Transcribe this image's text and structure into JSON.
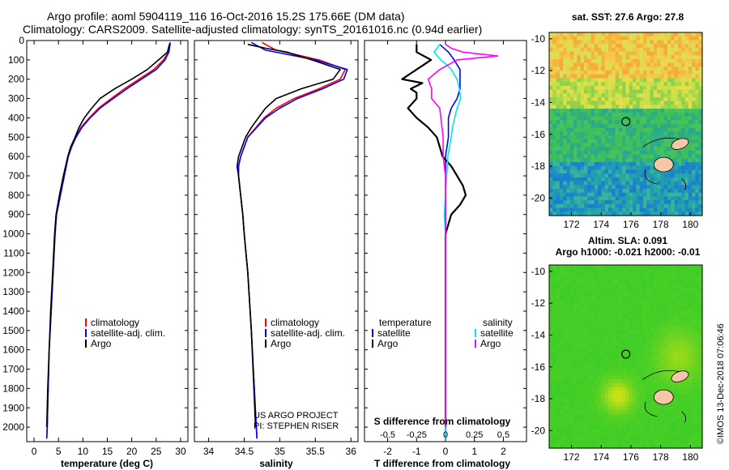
{
  "header": {
    "title_line1": "Argo profile: aoml 5904119_116 16-Oct-2016 15.2S 175.66E (DM data)",
    "title_line2": "Climatology: CARS2009. Satellite-adjusted climatology: synTS_20161016.nc (0.94d earlier)"
  },
  "colors": {
    "climatology": "#ff0000",
    "satellite": "#0000ff",
    "argo": "#000000",
    "sat_salinity": "#00e5ee",
    "argo_salinity": "#ff00ff"
  },
  "depth_axis": {
    "range": [
      0,
      2075
    ],
    "ticks": [
      "0",
      "100",
      "200",
      "300",
      "400",
      "500",
      "600",
      "700",
      "800",
      "900",
      "1000",
      "1100",
      "1200",
      "1300",
      "1400",
      "1500",
      "1600",
      "1700",
      "1800",
      "1900",
      "2000"
    ]
  },
  "chart_data": [
    {
      "id": "temperature",
      "type": "line",
      "xlabel": "temperature (deg C)",
      "xlim": [
        -1.5,
        31.5
      ],
      "xticks": [
        "0",
        "5",
        "10",
        "15",
        "20",
        "25",
        "30"
      ],
      "xtick_values": [
        0,
        5,
        10,
        15,
        20,
        25,
        30
      ],
      "legend": [
        "climatology",
        "satellite-adj. clim.",
        "Argo"
      ],
      "series": [
        {
          "name": "climatology",
          "color": "#ff0000",
          "depth": [
            10,
            60,
            100,
            150,
            200,
            250,
            300,
            350,
            400,
            450,
            500,
            550,
            600,
            700,
            800,
            900,
            1000,
            1200,
            1400,
            1600,
            1800,
            2000,
            2060
          ],
          "values": [
            27.8,
            27.5,
            26.5,
            24.5,
            21.5,
            18.5,
            15.8,
            13.2,
            11.3,
            9.6,
            8.5,
            7.6,
            7.0,
            6.2,
            5.4,
            4.6,
            4.3,
            3.9,
            3.5,
            3.1,
            2.9,
            2.7,
            2.6
          ]
        },
        {
          "name": "satellite-adj. clim.",
          "color": "#0000ff",
          "depth": [
            10,
            60,
            100,
            150,
            200,
            250,
            300,
            350,
            400,
            450,
            500,
            550,
            600,
            700,
            800,
            900,
            1000,
            1200,
            1400,
            1600,
            1800,
            2000,
            2060
          ],
          "values": [
            27.9,
            27.6,
            26.8,
            25.0,
            22.0,
            19.0,
            16.2,
            13.5,
            11.5,
            9.8,
            8.6,
            7.7,
            7.0,
            6.2,
            5.4,
            4.6,
            4.3,
            3.9,
            3.5,
            3.1,
            2.9,
            2.7,
            2.6
          ]
        },
        {
          "name": "Argo",
          "color": "#000000",
          "depth": [
            20,
            60,
            100,
            150,
            200,
            250,
            300,
            350,
            400,
            450,
            500,
            550,
            600,
            700,
            800,
            900,
            1000,
            1200,
            1400,
            1600,
            1800,
            2000
          ],
          "values": [
            27.7,
            27.3,
            25.5,
            23.2,
            20.0,
            16.5,
            13.5,
            11.8,
            10.3,
            9.2,
            8.4,
            7.5,
            6.9,
            6.0,
            5.2,
            4.5,
            4.2,
            3.8,
            3.4,
            3.1,
            2.8,
            2.6
          ]
        }
      ]
    },
    {
      "id": "salinity",
      "type": "line",
      "xlabel": "salinity",
      "xlim": [
        33.8,
        36.1
      ],
      "xticks": [
        "34",
        "34.5",
        "35",
        "35.5",
        "36"
      ],
      "xtick_values": [
        34,
        34.5,
        35,
        35.5,
        36
      ],
      "legend": [
        "climatology",
        "satellite-adj. clim.",
        "Argo"
      ],
      "credit": [
        "US ARGO PROJECT",
        "PI: STEPHEN RISER"
      ],
      "series": [
        {
          "name": "climatology",
          "color": "#ff0000",
          "depth": [
            10,
            50,
            100,
            150,
            200,
            250,
            300,
            350,
            400,
            500,
            600,
            650,
            700,
            800,
            900,
            1000,
            1200,
            1500,
            2000,
            2060
          ],
          "values": [
            34.75,
            34.95,
            35.55,
            35.92,
            35.85,
            35.55,
            35.2,
            34.95,
            34.78,
            34.55,
            34.45,
            34.42,
            34.42,
            34.45,
            34.48,
            34.5,
            34.55,
            34.6,
            34.67,
            34.68
          ]
        },
        {
          "name": "satellite-adj. clim.",
          "color": "#0000ff",
          "depth": [
            10,
            50,
            100,
            150,
            200,
            250,
            300,
            350,
            400,
            500,
            600,
            650,
            700,
            800,
            900,
            1000,
            1200,
            1500,
            2000,
            2060
          ],
          "values": [
            34.6,
            34.8,
            35.5,
            35.95,
            35.9,
            35.6,
            35.25,
            35.0,
            34.8,
            34.55,
            34.45,
            34.42,
            34.42,
            34.45,
            34.48,
            34.5,
            34.55,
            34.6,
            34.67,
            34.68
          ]
        },
        {
          "name": "Argo",
          "color": "#000000",
          "depth": [
            20,
            40,
            60,
            100,
            150,
            200,
            250,
            300,
            350,
            400,
            450,
            500,
            600,
            650,
            700,
            800,
            900,
            1000,
            1200,
            1500,
            2000
          ],
          "values": [
            34.55,
            34.8,
            35.1,
            35.45,
            35.85,
            35.75,
            35.3,
            34.95,
            34.8,
            34.7,
            34.6,
            34.52,
            34.42,
            34.4,
            34.42,
            34.45,
            34.48,
            34.5,
            34.55,
            34.6,
            34.66
          ]
        }
      ]
    },
    {
      "id": "difference",
      "type": "line",
      "xlabel": "T difference from climatology",
      "xlim": [
        -2.8,
        2.8
      ],
      "xticks": [
        "-2",
        "-1",
        "0",
        "1",
        "2"
      ],
      "xtick_values": [
        -2,
        -1,
        0,
        1,
        2
      ],
      "s_label": "S difference from climatology",
      "s_ticks": [
        "-0.5",
        "-0.25",
        "0",
        "0.25",
        "0.5"
      ],
      "s_tick_values": [
        -0.5,
        -0.25,
        0,
        0.25,
        0.5
      ],
      "legend_temp_title": "temperature",
      "legend_sal_title": "salinity",
      "legend_temp": [
        "satellite",
        "Argo"
      ],
      "legend_sal": [
        "satellite",
        "Argo"
      ],
      "series": [
        {
          "name": "T satellite",
          "color": "#0000ff",
          "depth": [
            20,
            60,
            100,
            150,
            200,
            250,
            300,
            350,
            400,
            500,
            600,
            700,
            800,
            900,
            1000,
            1500,
            2000,
            2060
          ],
          "values": [
            -0.2,
            0.1,
            0.3,
            0.5,
            0.5,
            0.5,
            0.4,
            0.2,
            0.1,
            0.1,
            0.0,
            0.0,
            0.0,
            0.0,
            0.0,
            0.0,
            0.0,
            0.0
          ]
        },
        {
          "name": "T Argo",
          "color": "#000000",
          "depth": [
            20,
            60,
            100,
            150,
            200,
            220,
            250,
            270,
            300,
            350,
            400,
            450,
            500,
            550,
            600,
            650,
            700,
            750,
            800,
            850,
            900,
            950,
            1000,
            1100,
            1200,
            1400,
            1600,
            1800,
            2000
          ],
          "values": [
            -1.0,
            -1.0,
            -0.5,
            -1.0,
            -1.5,
            -0.8,
            -1.2,
            -1.0,
            -1.0,
            -1.3,
            -1.0,
            -0.6,
            -0.3,
            -0.2,
            -0.1,
            0.2,
            0.4,
            0.6,
            0.7,
            0.5,
            0.2,
            0.1,
            0.0,
            0.0,
            0.0,
            0.0,
            0.0,
            0.0,
            0.0
          ]
        },
        {
          "name": "S satellite",
          "color": "#00e5ee",
          "depth": [
            20,
            60,
            100,
            120,
            150,
            200,
            250,
            300,
            350,
            400,
            450,
            500,
            600,
            700,
            800,
            900,
            1000,
            1500,
            2000,
            2060
          ],
          "values": [
            -0.05,
            -0.1,
            -0.04,
            0.0,
            0.05,
            0.1,
            0.12,
            0.13,
            0.1,
            0.08,
            0.06,
            0.05,
            0.02,
            0.01,
            0.0,
            -0.01,
            0.0,
            0.0,
            0.0,
            0.0
          ]
        },
        {
          "name": "S Argo",
          "color": "#ff00ff",
          "depth": [
            20,
            40,
            60,
            80,
            100,
            150,
            200,
            250,
            300,
            350,
            400,
            450,
            500,
            550,
            600,
            700,
            800,
            900,
            1000,
            1200,
            1500,
            2000
          ],
          "values": [
            0.0,
            0.05,
            0.15,
            0.45,
            0.1,
            -0.05,
            -0.15,
            -0.12,
            -0.12,
            -0.05,
            -0.04,
            -0.03,
            -0.02,
            -0.02,
            -0.02,
            0.0,
            0.0,
            0.0,
            0.0,
            0.0,
            0.0,
            0.0
          ]
        }
      ]
    },
    {
      "id": "sst_map",
      "type": "heatmap",
      "title": "sat. SST: 27.6  Argo: 27.8",
      "xlim": [
        170.5,
        180.8
      ],
      "ylim": [
        -21.1,
        -9.6
      ],
      "xticks": [
        "172",
        "174",
        "176",
        "178",
        "180"
      ],
      "xtick_values": [
        172,
        174,
        176,
        178,
        180
      ],
      "yticks": [
        "-10",
        "-12",
        "-14",
        "-16",
        "-18",
        "-20"
      ],
      "ytick_values": [
        -10,
        -12,
        -14,
        -16,
        -18,
        -20
      ],
      "float_position": [
        175.66,
        -15.2
      ]
    },
    {
      "id": "sla_map",
      "type": "heatmap",
      "title_line1": "Altim. SLA: 0.091",
      "title_line2": "Argo h1000: -0.021 h2000: -0.01",
      "xlim": [
        170.5,
        180.8
      ],
      "ylim": [
        -21.1,
        -9.6
      ],
      "xticks": [
        "172",
        "174",
        "176",
        "178",
        "180"
      ],
      "xtick_values": [
        172,
        174,
        176,
        178,
        180
      ],
      "yticks": [
        "-10",
        "-12",
        "-14",
        "-16",
        "-18",
        "-20"
      ],
      "ytick_values": [
        -10,
        -12,
        -14,
        -16,
        -18,
        -20
      ],
      "float_position": [
        175.66,
        -15.2
      ],
      "credit": "©IMOS 13-Dec-2018 07:06:46"
    }
  ]
}
